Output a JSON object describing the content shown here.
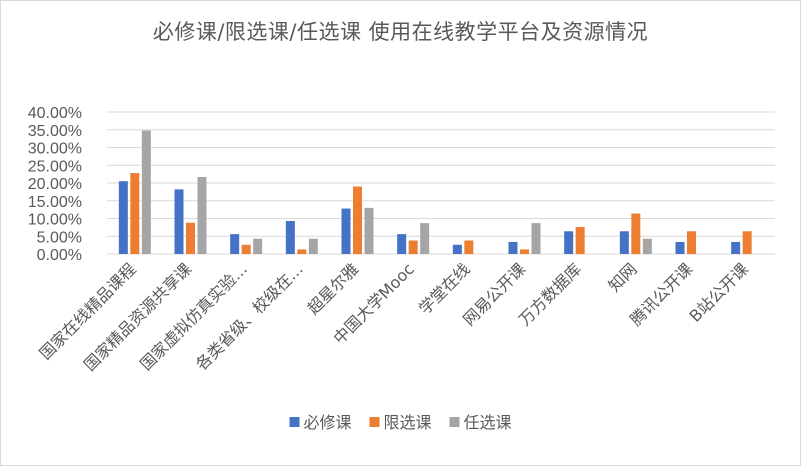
{
  "chart_data": {
    "type": "bar",
    "title": "必修课/限选课/任选课 使用在线教学平台及资源情况",
    "categories": [
      "国家在线精品课程",
      "国家精品资源共享课",
      "国家虚拟仿真实验...",
      "各类省级、校级在...",
      "超星尔雅",
      "中国大学Mooc",
      "学堂在线",
      "网易公开课",
      "万方数据库",
      "知网",
      "腾讯公开课",
      "B站公开课"
    ],
    "series": [
      {
        "name": "必修课",
        "color": "#4472c4",
        "values": [
          20.5,
          18.2,
          5.6,
          9.3,
          12.8,
          5.6,
          2.6,
          3.4,
          6.4,
          6.4,
          3.4,
          3.4
        ]
      },
      {
        "name": "限选课",
        "color": "#ed7d31",
        "values": [
          22.8,
          8.8,
          2.6,
          1.3,
          19.0,
          3.8,
          3.8,
          1.3,
          7.6,
          11.4,
          6.4,
          6.4
        ]
      },
      {
        "name": "任选课",
        "color": "#a5a5a5",
        "values": [
          34.8,
          21.7,
          4.3,
          4.3,
          13.0,
          8.7,
          0.0,
          8.7,
          0.0,
          4.3,
          0.0,
          0.0
        ]
      }
    ],
    "yticks": [
      "0.00%",
      "5.00%",
      "10.00%",
      "15.00%",
      "20.00%",
      "25.00%",
      "30.00%",
      "35.00%",
      "40.00%"
    ],
    "ylim": [
      0,
      40
    ],
    "grid": true,
    "legend_position": "bottom"
  }
}
